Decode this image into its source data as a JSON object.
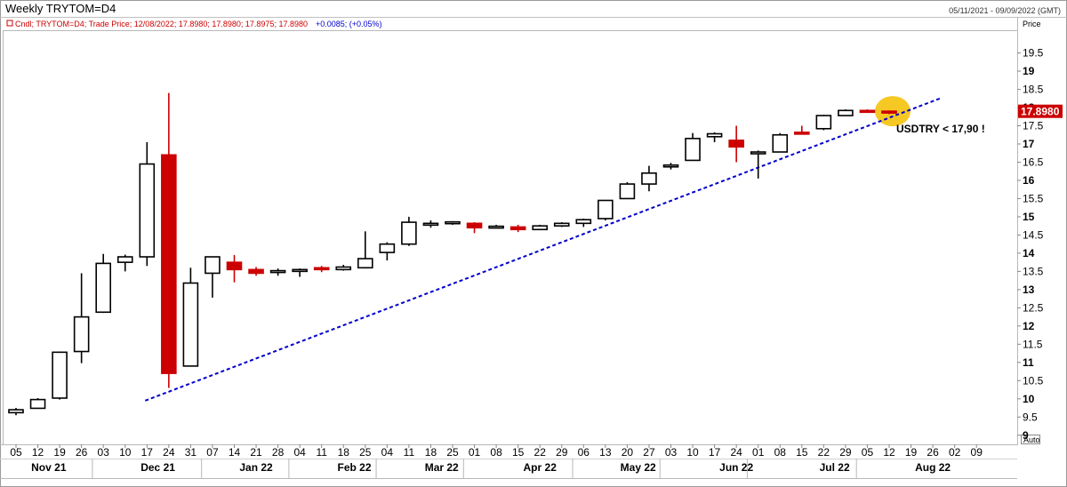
{
  "header": {
    "title": "Weekly TRYTOM=D4",
    "date_range": "05/11/2021 - 09/09/2022 (GMT)"
  },
  "legend": {
    "series_line": "Cndl; TRYTOM=D4; Trade Price; 12/08/2022; 17.8980; 17.8980; 17.8975; 17.8980",
    "change": "+0.0085; (+0.05%)"
  },
  "axis": {
    "y_title": "Price",
    "auto_label": "Auto",
    "last_price_label": "17.8980"
  },
  "annotation": {
    "text": "USDTRY < 17,90 !"
  },
  "colors": {
    "up_body": "#ffffff",
    "down_body": "#cc0000",
    "trendline": "#0000cc",
    "highlight": "#f5c518",
    "last_price_bg": "#cc0000",
    "legend_red": "#cc0000",
    "legend_blue": "#0000cc"
  },
  "chart_data": {
    "type": "candlestick",
    "ylim": [
      8.75,
      20.1
    ],
    "y_ticks": [
      "9",
      "9.5",
      "10",
      "10.5",
      "11",
      "11.5",
      "12",
      "12.5",
      "13",
      "13.5",
      "14",
      "14.5",
      "15",
      "15.5",
      "16",
      "16.5",
      "17",
      "17.5",
      "18",
      "18.5",
      "19",
      "19.5"
    ],
    "x_tick_labels": [
      "05",
      "12",
      "19",
      "26",
      "03",
      "10",
      "17",
      "24",
      "31",
      "07",
      "14",
      "21",
      "28",
      "04",
      "11",
      "18",
      "25",
      "04",
      "11",
      "18",
      "25",
      "01",
      "08",
      "15",
      "22",
      "29",
      "06",
      "13",
      "20",
      "27",
      "03",
      "10",
      "17",
      "24",
      "01",
      "08",
      "15",
      "22",
      "29",
      "05",
      "12",
      "19",
      "26",
      "02",
      "09"
    ],
    "months": [
      {
        "label": "Nov 21",
        "center_index": 1.5
      },
      {
        "label": "Dec 21",
        "center_index": 6.5
      },
      {
        "label": "Jan 22",
        "center_index": 11
      },
      {
        "label": "Feb 22",
        "center_index": 15.5
      },
      {
        "label": "Mar 22",
        "center_index": 19.5
      },
      {
        "label": "Apr 22",
        "center_index": 24
      },
      {
        "label": "May 22",
        "center_index": 28.5
      },
      {
        "label": "Jun 22",
        "center_index": 33
      },
      {
        "label": "Jul 22",
        "center_index": 37.5
      },
      {
        "label": "Aug 22",
        "center_index": 42
      }
    ],
    "month_separators_after_index": [
      3,
      8,
      12,
      16,
      20,
      25,
      29,
      33,
      38
    ],
    "candles": [
      {
        "o": 9.62,
        "h": 9.75,
        "l": 9.55,
        "c": 9.7
      },
      {
        "o": 9.74,
        "h": 10.02,
        "l": 9.73,
        "c": 9.98
      },
      {
        "o": 10.02,
        "h": 11.3,
        "l": 9.98,
        "c": 11.28
      },
      {
        "o": 11.3,
        "h": 13.45,
        "l": 10.98,
        "c": 12.25
      },
      {
        "o": 12.38,
        "h": 13.98,
        "l": 12.36,
        "c": 13.72
      },
      {
        "o": 13.75,
        "h": 13.96,
        "l": 13.5,
        "c": 13.9
      },
      {
        "o": 13.9,
        "h": 17.05,
        "l": 13.65,
        "c": 16.45
      },
      {
        "o": 16.7,
        "h": 18.4,
        "l": 10.3,
        "c": 10.7
      },
      {
        "o": 10.9,
        "h": 13.6,
        "l": 10.9,
        "c": 13.18
      },
      {
        "o": 13.45,
        "h": 13.9,
        "l": 12.78,
        "c": 13.9
      },
      {
        "o": 13.75,
        "h": 13.95,
        "l": 13.2,
        "c": 13.55
      },
      {
        "o": 13.55,
        "h": 13.62,
        "l": 13.38,
        "c": 13.45
      },
      {
        "o": 13.48,
        "h": 13.58,
        "l": 13.38,
        "c": 13.52
      },
      {
        "o": 13.52,
        "h": 13.58,
        "l": 13.35,
        "c": 13.55
      },
      {
        "o": 13.6,
        "h": 13.65,
        "l": 13.48,
        "c": 13.55
      },
      {
        "o": 13.55,
        "h": 13.68,
        "l": 13.52,
        "c": 13.62
      },
      {
        "o": 13.6,
        "h": 14.6,
        "l": 13.58,
        "c": 13.85
      },
      {
        "o": 14.02,
        "h": 14.3,
        "l": 13.8,
        "c": 14.25
      },
      {
        "o": 14.25,
        "h": 15.0,
        "l": 14.2,
        "c": 14.85
      },
      {
        "o": 14.78,
        "h": 14.9,
        "l": 14.7,
        "c": 14.82
      },
      {
        "o": 14.82,
        "h": 14.88,
        "l": 14.78,
        "c": 14.86
      },
      {
        "o": 14.82,
        "h": 14.85,
        "l": 14.55,
        "c": 14.7
      },
      {
        "o": 14.72,
        "h": 14.78,
        "l": 14.7,
        "c": 14.74
      },
      {
        "o": 14.72,
        "h": 14.78,
        "l": 14.58,
        "c": 14.65
      },
      {
        "o": 14.65,
        "h": 14.78,
        "l": 14.65,
        "c": 14.75
      },
      {
        "o": 14.75,
        "h": 14.85,
        "l": 14.72,
        "c": 14.82
      },
      {
        "o": 14.82,
        "h": 14.95,
        "l": 14.72,
        "c": 14.92
      },
      {
        "o": 14.95,
        "h": 15.45,
        "l": 14.9,
        "c": 15.45
      },
      {
        "o": 15.5,
        "h": 15.95,
        "l": 15.5,
        "c": 15.9
      },
      {
        "o": 15.9,
        "h": 16.4,
        "l": 15.7,
        "c": 16.2
      },
      {
        "o": 16.38,
        "h": 16.48,
        "l": 16.3,
        "c": 16.42
      },
      {
        "o": 16.55,
        "h": 17.3,
        "l": 16.55,
        "c": 17.15
      },
      {
        "o": 17.2,
        "h": 17.32,
        "l": 17.05,
        "c": 17.28
      },
      {
        "o": 17.1,
        "h": 17.5,
        "l": 16.5,
        "c": 16.92
      },
      {
        "o": 16.78,
        "h": 16.82,
        "l": 16.05,
        "c": 16.78
      },
      {
        "o": 16.78,
        "h": 17.3,
        "l": 16.78,
        "c": 17.25
      },
      {
        "o": 17.32,
        "h": 17.5,
        "l": 17.3,
        "c": 17.3
      },
      {
        "o": 17.42,
        "h": 17.8,
        "l": 17.38,
        "c": 17.78
      },
      {
        "o": 17.78,
        "h": 17.95,
        "l": 17.78,
        "c": 17.92
      },
      {
        "o": 17.92,
        "h": 17.95,
        "l": 17.88,
        "c": 17.9
      },
      {
        "o": 17.9,
        "h": 17.92,
        "l": 17.82,
        "c": 17.898
      }
    ],
    "trendline": {
      "from_index": 6,
      "from_price": 9.95,
      "to_index": 42,
      "to_price": 18.25
    },
    "highlight_index": 40,
    "highlight_price": 17.9,
    "last_price": 17.898
  }
}
